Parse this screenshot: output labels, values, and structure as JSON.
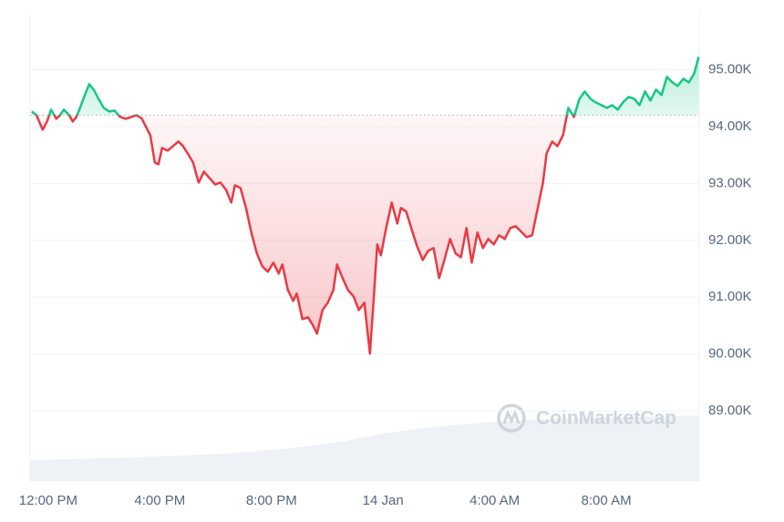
{
  "chart_data": {
    "type": "line",
    "x": [
      -0.59,
      -0.42,
      -0.2,
      -0.03,
      0.1,
      0.29,
      0.42,
      0.56,
      0.75,
      0.88,
      1.01,
      1.14,
      1.31,
      1.47,
      1.63,
      1.8,
      1.99,
      2.19,
      2.38,
      2.58,
      2.78,
      2.97,
      3.17,
      3.36,
      3.49,
      3.66,
      3.82,
      3.95,
      4.08,
      4.28,
      4.47,
      4.67,
      4.83,
      5.0,
      5.19,
      5.39,
      5.58,
      5.78,
      5.98,
      6.17,
      6.37,
      6.56,
      6.69,
      6.89,
      7.09,
      7.28,
      7.48,
      7.67,
      7.87,
      8.07,
      8.26,
      8.39,
      8.59,
      8.78,
      8.91,
      9.11,
      9.31,
      9.47,
      9.63,
      9.83,
      10.02,
      10.22,
      10.35,
      10.55,
      10.74,
      10.94,
      11.13,
      11.33,
      11.53,
      11.66,
      11.79,
      11.92,
      12.11,
      12.31,
      12.51,
      12.64,
      12.83,
      13.03,
      13.22,
      13.42,
      13.62,
      13.81,
      14.01,
      14.2,
      14.4,
      14.6,
      14.79,
      14.99,
      15.18,
      15.38,
      15.58,
      15.77,
      15.97,
      16.16,
      16.36,
      16.56,
      16.75,
      16.95,
      17.14,
      17.34,
      17.53,
      17.73,
      17.86,
      18.06,
      18.25,
      18.45,
      18.64,
      18.84,
      19.04,
      19.23,
      19.43,
      19.62,
      19.82,
      20.02,
      20.21,
      20.41,
      20.6,
      20.8,
      21.0,
      21.19,
      21.39,
      21.58,
      21.78,
      21.98,
      22.17,
      22.37,
      22.56,
      22.76,
      22.96,
      23.15,
      23.31
    ],
    "values": [
      94264,
      94200,
      93944,
      94104,
      94296,
      94136,
      94200,
      94296,
      94200,
      94088,
      94168,
      94328,
      94552,
      94744,
      94648,
      94488,
      94328,
      94264,
      94280,
      94168,
      94136,
      94168,
      94200,
      94136,
      94008,
      93848,
      93368,
      93336,
      93624,
      93576,
      93656,
      93736,
      93656,
      93528,
      93368,
      93016,
      93208,
      93096,
      92984,
      93016,
      92888,
      92664,
      92968,
      92920,
      92568,
      92136,
      91768,
      91544,
      91448,
      91608,
      91416,
      91576,
      91128,
      90936,
      91064,
      90616,
      90648,
      90520,
      90360,
      90776,
      90904,
      91128,
      91576,
      91336,
      91128,
      91016,
      90776,
      90904,
      90008,
      90936,
      91928,
      91736,
      92216,
      92664,
      92296,
      92568,
      92504,
      92184,
      91896,
      91656,
      91816,
      91864,
      91336,
      91656,
      92024,
      91768,
      91704,
      92216,
      91608,
      92136,
      91864,
      92024,
      91928,
      92088,
      92024,
      92216,
      92248,
      92152,
      92056,
      92088,
      92536,
      93016,
      93528,
      93736,
      93656,
      93848,
      94328,
      94168,
      94488,
      94616,
      94488,
      94424,
      94376,
      94328,
      94376,
      94296,
      94424,
      94520,
      94488,
      94376,
      94616,
      94456,
      94648,
      94552,
      94872,
      94776,
      94712,
      94840,
      94776,
      94936,
      95224
    ],
    "baseline": 94200,
    "color_up": "#16c784",
    "color_down": "#ea3943",
    "xlim": [
      -0.65,
      23.33
    ],
    "xticks": [
      {
        "value": 0,
        "label": "12:00 PM"
      },
      {
        "value": 4,
        "label": "4:00 PM"
      },
      {
        "value": 8,
        "label": "8:00 PM"
      },
      {
        "value": 12,
        "label": "14 Jan"
      },
      {
        "value": 16,
        "label": "4:00 AM"
      },
      {
        "value": 20,
        "label": "8:00 AM"
      }
    ],
    "ylim": [
      87770,
      96000
    ],
    "yticks": [
      {
        "value": 89000,
        "label": "89.00K"
      },
      {
        "value": 90000,
        "label": "90.00K"
      },
      {
        "value": 91000,
        "label": "91.00K"
      },
      {
        "value": 92000,
        "label": "92.00K"
      },
      {
        "value": 93000,
        "label": "93.00K"
      },
      {
        "value": 94000,
        "label": "94.00K"
      },
      {
        "value": 95000,
        "label": "95.00K"
      }
    ],
    "grid": true,
    "watermark": "CoinMarketCap"
  }
}
